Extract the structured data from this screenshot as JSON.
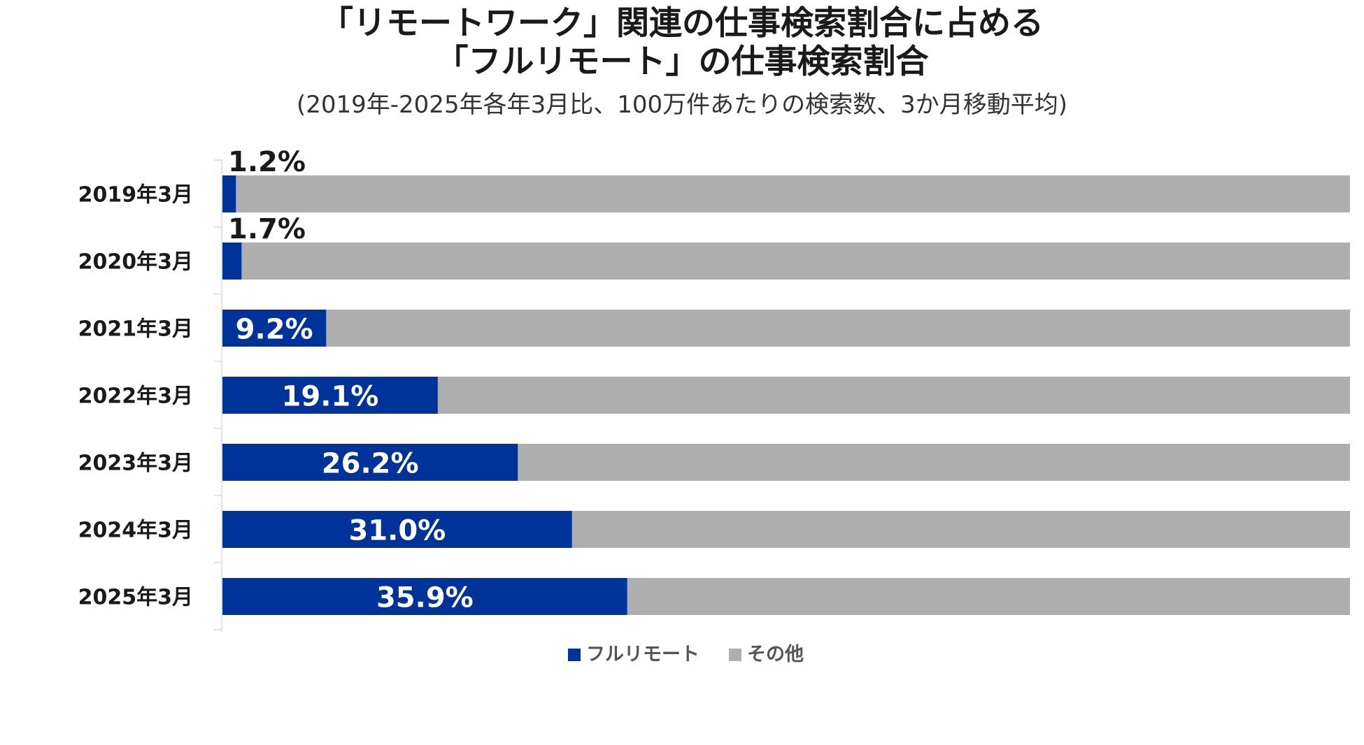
{
  "chart_data": {
    "type": "bar",
    "orientation": "horizontal",
    "stacked": true,
    "title_lines": [
      "「リモートワーク」関連の仕事検索割合に占める",
      "「フルリモート」の仕事検索割合"
    ],
    "subtitle": "(2019年-2025年各年3月比、100万件あたりの検索数、3か月移動平均)",
    "categories": [
      "2019年3月",
      "2020年3月",
      "2021年3月",
      "2022年3月",
      "2023年3月",
      "2024年3月",
      "2025年3月"
    ],
    "series": [
      {
        "name": "フルリモート",
        "color": "#003399",
        "values": [
          1.2,
          1.7,
          9.2,
          19.1,
          26.2,
          31.0,
          35.9
        ]
      },
      {
        "name": "その他",
        "color": "#AEAEAE",
        "values": [
          98.8,
          98.3,
          90.8,
          80.9,
          73.8,
          69.0,
          64.1
        ]
      }
    ],
    "data_labels": [
      "1.2%",
      "1.7%",
      "9.2%",
      "19.1%",
      "26.2%",
      "31.0%",
      "35.9%"
    ],
    "xlim": [
      0,
      100
    ],
    "grid": false,
    "legend_position": "bottom"
  }
}
